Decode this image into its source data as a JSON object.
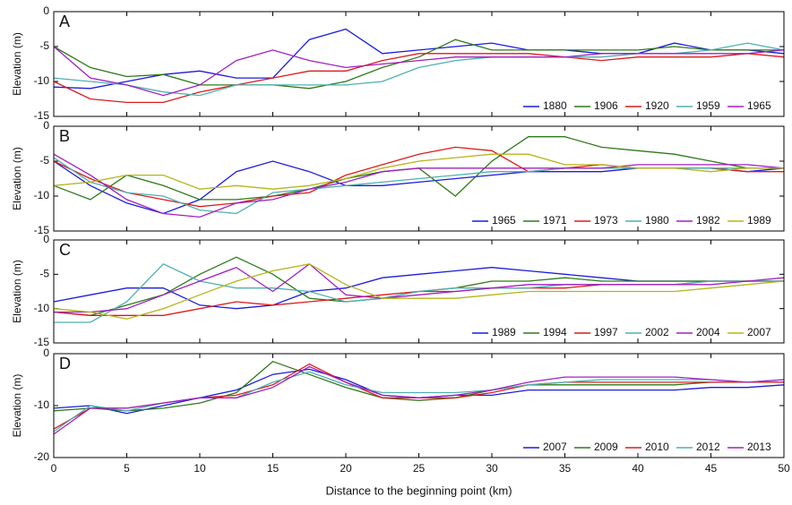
{
  "chart_data": [
    {
      "type": "line",
      "panel": "A",
      "ylabel": "Elevation (m)",
      "x": [
        0,
        2.5,
        5,
        7.5,
        10,
        12.5,
        15,
        17.5,
        20,
        22.5,
        25,
        27.5,
        30,
        32.5,
        35,
        37.5,
        40,
        42.5,
        45,
        47.5,
        50
      ],
      "xlim": [
        0,
        50
      ],
      "ylim": [
        -15,
        0
      ],
      "yticks": [
        0,
        -5,
        -10,
        -15
      ],
      "series": [
        {
          "name": "1880",
          "color": "#1c1cdc",
          "values": [
            -10.8,
            -11,
            -10,
            -9,
            -8.5,
            -9.5,
            -9.5,
            -4,
            -2.5,
            -6,
            -5.5,
            -5,
            -4.5,
            -5.5,
            -5.5,
            -6,
            -6,
            -4.5,
            -5.5,
            -5.5,
            -6
          ]
        },
        {
          "name": "1906",
          "color": "#2e7a1a",
          "values": [
            -5,
            -8,
            -9.3,
            -9,
            -10.5,
            -10.5,
            -10.5,
            -11,
            -10,
            -8,
            -6.5,
            -4,
            -5.5,
            -5.5,
            -5.5,
            -5.5,
            -5.5,
            -5,
            -5.5,
            -5.5,
            -5.5
          ]
        },
        {
          "name": "1920",
          "color": "#dc1c1c",
          "values": [
            -10,
            -12.5,
            -13,
            -13,
            -11.5,
            -10.5,
            -9.5,
            -8.5,
            -8.5,
            -7,
            -6,
            -6,
            -6,
            -6,
            -6.5,
            -7,
            -6.5,
            -6.5,
            -6.5,
            -6,
            -6.5
          ]
        },
        {
          "name": "1959",
          "color": "#4fb0b0",
          "values": [
            -9.5,
            -10,
            -10.5,
            -11.5,
            -12,
            -10.5,
            -10.5,
            -10.5,
            -10.5,
            -10,
            -8,
            -7,
            -6.5,
            -6.5,
            -6.5,
            -6.5,
            -6,
            -6,
            -5.5,
            -4.5,
            -5.5
          ]
        },
        {
          "name": "1965",
          "color": "#a020c0",
          "values": [
            -5,
            -9.5,
            -10.5,
            -12,
            -10.5,
            -7,
            -5.5,
            -7,
            -8,
            -7.5,
            -7,
            -6.5,
            -6.5,
            -6.5,
            -6.5,
            -6,
            -6,
            -6,
            -6,
            -6,
            -5.5
          ]
        }
      ]
    },
    {
      "type": "line",
      "panel": "B",
      "ylabel": "Elevation (m)",
      "x": [
        0,
        2.5,
        5,
        7.5,
        10,
        12.5,
        15,
        17.5,
        20,
        22.5,
        25,
        27.5,
        30,
        32.5,
        35,
        37.5,
        40,
        42.5,
        45,
        47.5,
        50
      ],
      "xlim": [
        0,
        50
      ],
      "ylim": [
        -15,
        0
      ],
      "yticks": [
        0,
        -5,
        -10,
        -15
      ],
      "series": [
        {
          "name": "1965",
          "color": "#1c1cdc",
          "values": [
            -5,
            -8.5,
            -11,
            -12.5,
            -10.5,
            -6.5,
            -5,
            -6.5,
            -8.5,
            -8.5,
            -8,
            -7.5,
            -7,
            -6.5,
            -6.5,
            -6.5,
            -6,
            -6,
            -6,
            -6.5,
            -6
          ]
        },
        {
          "name": "1971",
          "color": "#2e7a1a",
          "values": [
            -8.5,
            -10.5,
            -7,
            -8.5,
            -10.5,
            -10.5,
            -10,
            -9,
            -7.5,
            -6.5,
            -6,
            -10,
            -5,
            -1.5,
            -1.5,
            -3,
            -3.5,
            -4,
            -5,
            -6,
            -6
          ]
        },
        {
          "name": "1973",
          "color": "#dc1c1c",
          "values": [
            -5,
            -7.5,
            -9.5,
            -10.5,
            -11.5,
            -11,
            -10,
            -9.5,
            -7,
            -5.5,
            -4,
            -3,
            -3.5,
            -6.5,
            -6,
            -5.5,
            -6,
            -6,
            -6,
            -6.5,
            -6.5
          ]
        },
        {
          "name": "1980",
          "color": "#4fb0b0",
          "values": [
            -4.5,
            -8,
            -9.5,
            -10,
            -12,
            -12.5,
            -9.5,
            -9,
            -8.5,
            -8,
            -7.5,
            -7,
            -6.5,
            -6.5,
            -6,
            -6,
            -6,
            -6,
            -6,
            -6,
            -6
          ]
        },
        {
          "name": "1982",
          "color": "#a020c0",
          "values": [
            -4,
            -7,
            -10.5,
            -12.5,
            -13,
            -11,
            -10.5,
            -9,
            -8,
            -6.5,
            -6,
            -6,
            -6,
            -6,
            -6,
            -6,
            -5.5,
            -5.5,
            -5.5,
            -5.5,
            -6
          ]
        },
        {
          "name": "1989",
          "color": "#b5b51c",
          "values": [
            -8.5,
            -8,
            -7,
            -7,
            -9,
            -8.5,
            -9,
            -8.5,
            -7.5,
            -6,
            -5,
            -4.5,
            -4,
            -4,
            -5.5,
            -5.5,
            -6,
            -6,
            -6.5,
            -6,
            -6
          ]
        }
      ]
    },
    {
      "type": "line",
      "panel": "C",
      "ylabel": "Elevation (m)",
      "x": [
        0,
        2.5,
        5,
        7.5,
        10,
        12.5,
        15,
        17.5,
        20,
        22.5,
        25,
        27.5,
        30,
        32.5,
        35,
        37.5,
        40,
        42.5,
        45,
        47.5,
        50
      ],
      "xlim": [
        0,
        50
      ],
      "ylim": [
        -15,
        0
      ],
      "yticks": [
        0,
        -5,
        -10,
        -15
      ],
      "series": [
        {
          "name": "1989",
          "color": "#1c1cdc",
          "values": [
            -9,
            -8,
            -7,
            -7,
            -9.5,
            -10,
            -9.5,
            -7.5,
            -7,
            -5.5,
            -5,
            -4.5,
            -4,
            -4.5,
            -5,
            -5.5,
            -6,
            -6,
            -6,
            -6,
            -6
          ]
        },
        {
          "name": "1994",
          "color": "#2e7a1a",
          "values": [
            -10.5,
            -11,
            -9.5,
            -8,
            -5,
            -2.5,
            -5,
            -8.5,
            -9,
            -8.5,
            -7.5,
            -7,
            -6,
            -6,
            -5.5,
            -6,
            -6,
            -6,
            -6,
            -6,
            -6
          ]
        },
        {
          "name": "1997",
          "color": "#dc1c1c",
          "values": [
            -10.5,
            -11,
            -11,
            -11,
            -10,
            -9,
            -9.5,
            -9,
            -8.5,
            -8,
            -7.5,
            -7.5,
            -7,
            -7,
            -7,
            -6.5,
            -6.5,
            -6.5,
            -6,
            -6,
            -6
          ]
        },
        {
          "name": "2002",
          "color": "#4fb0b0",
          "values": [
            -12,
            -12,
            -9,
            -3.5,
            -6,
            -7,
            -7,
            -7.5,
            -9,
            -8.5,
            -7.5,
            -7,
            -7,
            -7,
            -6.5,
            -6.5,
            -6.5,
            -6.5,
            -6,
            -6,
            -6
          ]
        },
        {
          "name": "2004",
          "color": "#a020c0",
          "values": [
            -10.5,
            -10.5,
            -10,
            -8,
            -6,
            -4,
            -7.5,
            -3.5,
            -8,
            -8.5,
            -8,
            -7.5,
            -7,
            -6.5,
            -6.5,
            -6.5,
            -6.5,
            -6.5,
            -6.5,
            -6,
            -5.5
          ]
        },
        {
          "name": "2007",
          "color": "#b5b51c",
          "values": [
            -10,
            -10.5,
            -11.5,
            -10,
            -8,
            -6,
            -4.5,
            -3.5,
            -6.5,
            -8.5,
            -8.5,
            -8.5,
            -8,
            -7.5,
            -7.5,
            -7.5,
            -7.5,
            -7.5,
            -7,
            -6.5,
            -6
          ]
        }
      ]
    },
    {
      "type": "line",
      "panel": "D",
      "ylabel": "Elevation (m)",
      "xlabel": "Distance to the beginning point  (km)",
      "x": [
        0,
        2.5,
        5,
        7.5,
        10,
        12.5,
        15,
        17.5,
        20,
        22.5,
        25,
        27.5,
        30,
        32.5,
        35,
        37.5,
        40,
        42.5,
        45,
        47.5,
        50
      ],
      "xlim": [
        0,
        50
      ],
      "xticks": [
        0,
        5,
        10,
        15,
        20,
        25,
        30,
        35,
        40,
        45,
        50
      ],
      "ylim": [
        -20,
        0
      ],
      "yticks": [
        0,
        -10,
        -20
      ],
      "series": [
        {
          "name": "2007",
          "color": "#1c1cdc",
          "values": [
            -10.5,
            -10,
            -11.5,
            -10,
            -8.5,
            -7,
            -4,
            -3,
            -5,
            -8,
            -8.5,
            -8,
            -8,
            -7,
            -7,
            -7,
            -7,
            -7,
            -6.5,
            -6.5,
            -6
          ]
        },
        {
          "name": "2009",
          "color": "#2e7a1a",
          "values": [
            -11,
            -10.5,
            -11,
            -10.5,
            -9.5,
            -7.5,
            -1.5,
            -4,
            -6.5,
            -8.5,
            -9,
            -8.5,
            -7,
            -6,
            -6,
            -6,
            -6,
            -6,
            -5.5,
            -5.5,
            -5.5
          ]
        },
        {
          "name": "2010",
          "color": "#dc1c1c",
          "values": [
            -14.5,
            -10.5,
            -10.5,
            -9.5,
            -8.5,
            -8,
            -6,
            -2,
            -5.5,
            -8.5,
            -8.5,
            -8.5,
            -7.5,
            -6,
            -5.5,
            -5.5,
            -5.5,
            -5.5,
            -5.5,
            -5.5,
            -5.5
          ]
        },
        {
          "name": "2012",
          "color": "#4fb0b0",
          "values": [
            -15,
            -10,
            -11,
            -9.5,
            -8.5,
            -8.5,
            -5.5,
            -3.5,
            -6,
            -7.5,
            -7.5,
            -7.5,
            -7,
            -6,
            -5.5,
            -5,
            -5,
            -5,
            -5,
            -5.5,
            -5
          ]
        },
        {
          "name": "2013",
          "color": "#a020c0",
          "values": [
            -15.5,
            -10.5,
            -10.5,
            -9.5,
            -8.5,
            -8.5,
            -6.5,
            -2.5,
            -5.5,
            -8,
            -8.5,
            -8,
            -7,
            -5.5,
            -4.5,
            -4.5,
            -4.5,
            -4.5,
            -5,
            -5.5,
            -5
          ]
        }
      ]
    }
  ]
}
